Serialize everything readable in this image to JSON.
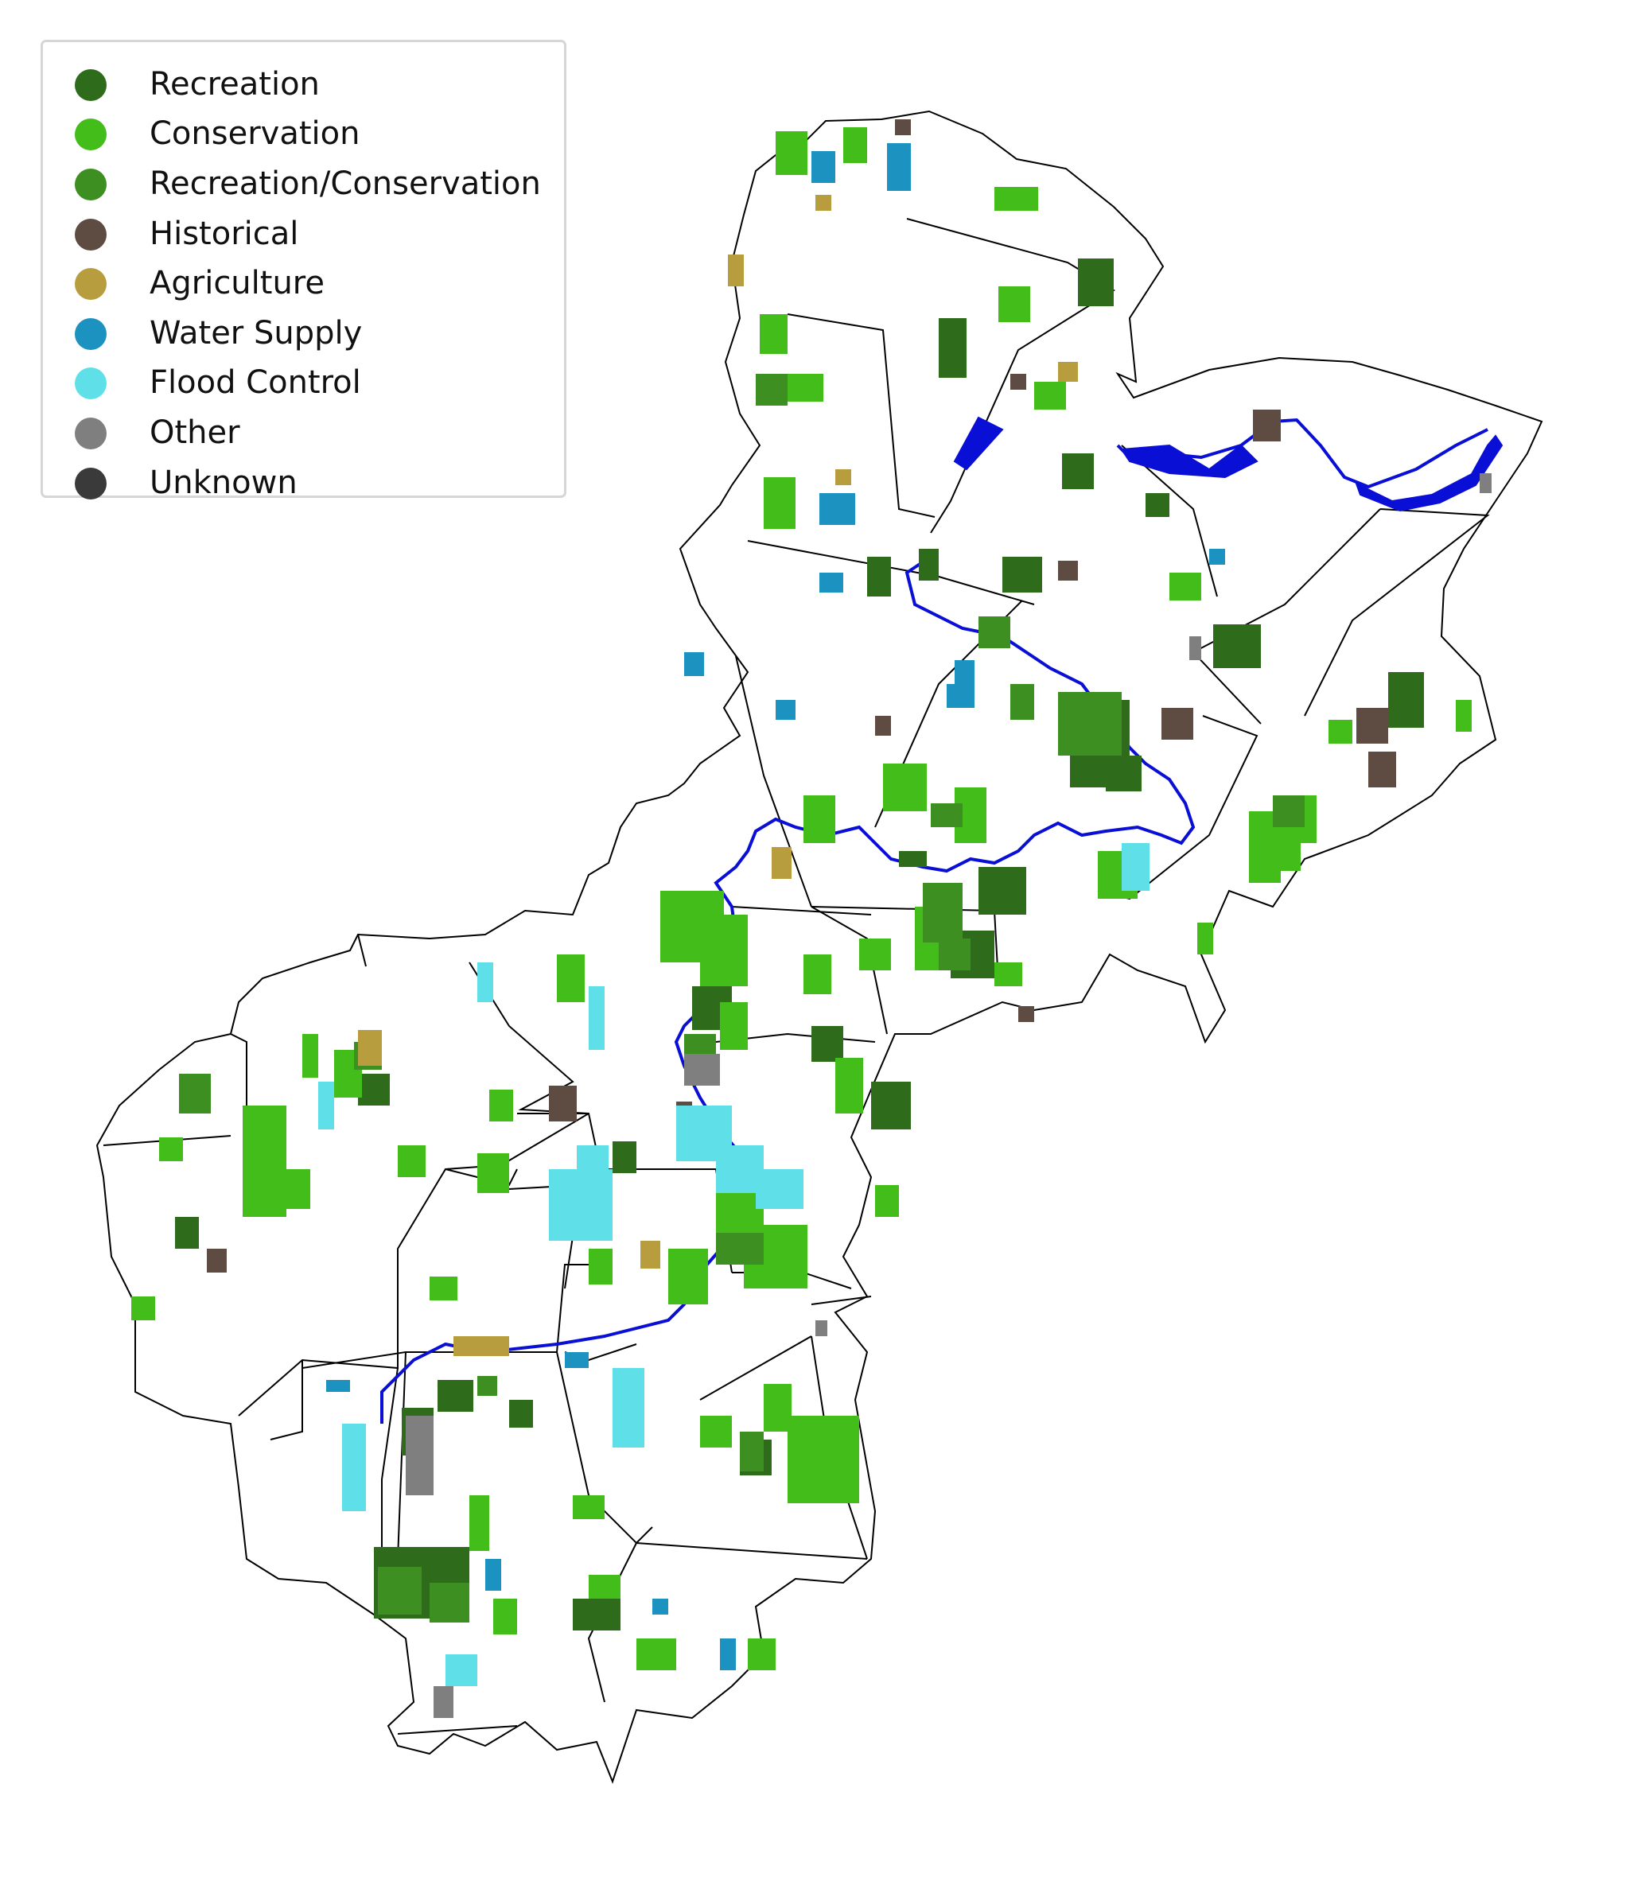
{
  "map": {
    "legend": [
      {
        "label": "Recreation",
        "color": "#2e6b1a"
      },
      {
        "label": "Conservation",
        "color": "#43bd19"
      },
      {
        "label": "Recreation/Conservation",
        "color": "#3d8f21"
      },
      {
        "label": "Historical",
        "color": "#5e4b42"
      },
      {
        "label": "Agriculture",
        "color": "#b89d3e"
      },
      {
        "label": "Water Supply",
        "color": "#1b92bf"
      },
      {
        "label": "Flood Control",
        "color": "#5fe0e8"
      },
      {
        "label": "Other",
        "color": "#7f7f7f"
      },
      {
        "label": "Unknown",
        "color": "#3a3a3a"
      }
    ],
    "colors": {
      "river": "#0a0fd6",
      "boundary": "#000000",
      "background": "#ffffff"
    }
  }
}
